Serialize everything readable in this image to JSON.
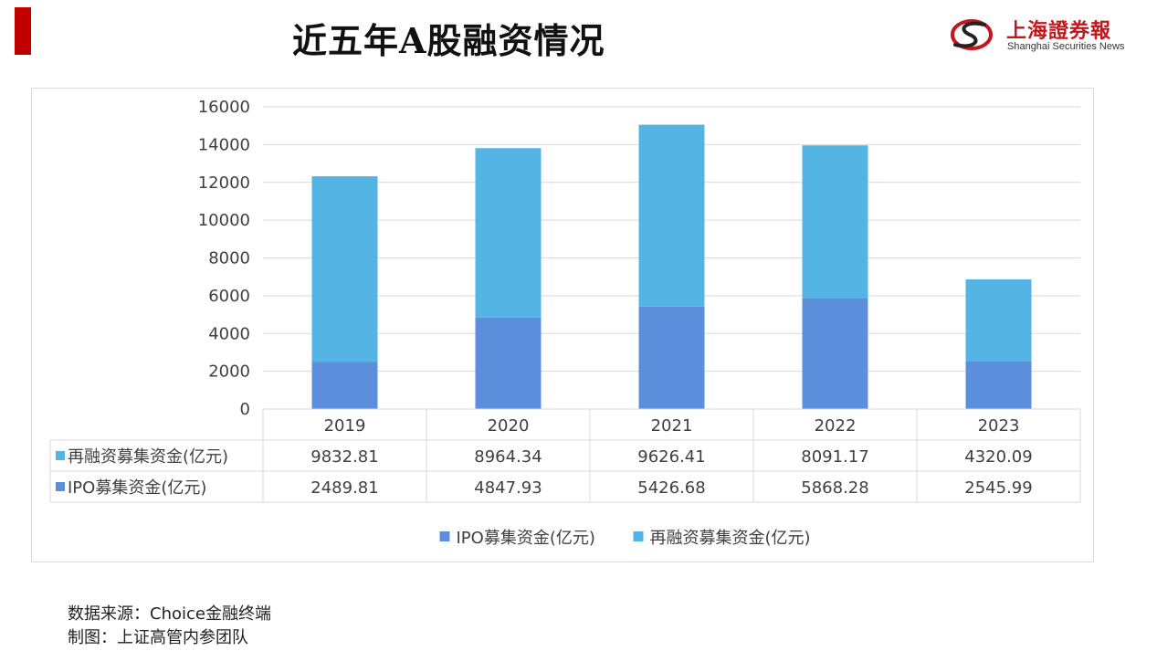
{
  "header": {
    "title": "近五年A股融资情况",
    "logo_cn": "上海證券報",
    "logo_en": "Shanghai Securities News"
  },
  "chart_data": {
    "type": "bar",
    "stacked": true,
    "title": "近五年A股融资情况",
    "categories": [
      "2019",
      "2020",
      "2021",
      "2022",
      "2023"
    ],
    "series": [
      {
        "name": "IPO募集资金(亿元)",
        "values": [
          2489.81,
          4847.93,
          5426.68,
          5868.28,
          2545.99
        ],
        "color": "#5b8fdc"
      },
      {
        "name": "再融资募集资金(亿元)",
        "values": [
          9832.81,
          8964.34,
          9626.41,
          8091.17,
          4320.09
        ],
        "color": "#54b4e4"
      }
    ],
    "ylim": [
      0,
      16000
    ],
    "yticks": [
      "0",
      "2000",
      "4000",
      "6000",
      "8000",
      "10000",
      "12000",
      "14000",
      "16000"
    ],
    "grid": true,
    "data_table": {
      "rows": [
        {
          "label": "再融资募集资金(亿元)",
          "values": [
            "9832.81",
            "8964.34",
            "9626.41",
            "8091.17",
            "4320.09"
          ],
          "color": "#54b4e4"
        },
        {
          "label": "IPO募集资金(亿元)",
          "values": [
            "2489.81",
            "4847.93",
            "5426.68",
            "5868.28",
            "2545.99"
          ],
          "color": "#5b8fdc"
        }
      ]
    },
    "legend": {
      "position": "bottom",
      "items": [
        "IPO募集资金(亿元)",
        "再融资募集资金(亿元)"
      ]
    }
  },
  "footer": {
    "source": "数据来源：Choice金融终端",
    "credit": "制图：上证高管内参团队"
  }
}
